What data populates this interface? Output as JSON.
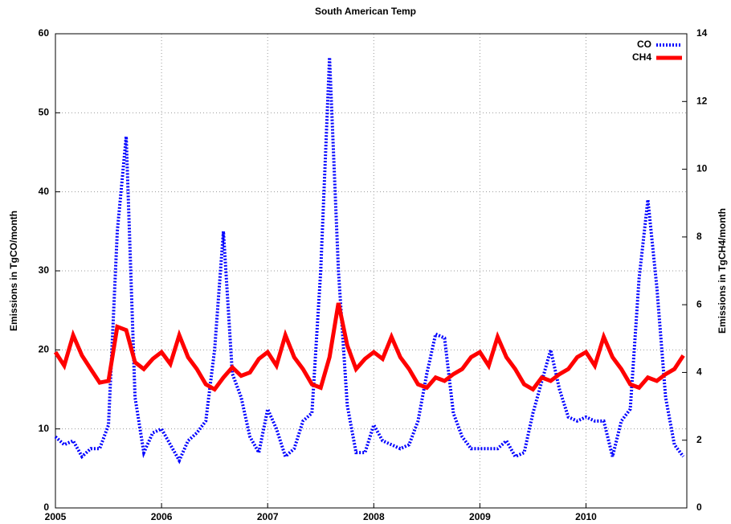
{
  "chart_data": {
    "type": "line",
    "title": "South American Temp",
    "ylabel": "Emissions in TgCO/month",
    "y2label": "Emissions in TgCH4/month",
    "x": [
      2005,
      2005.083,
      2005.167,
      2005.25,
      2005.333,
      2005.417,
      2005.5,
      2005.583,
      2005.667,
      2005.75,
      2005.833,
      2005.917,
      2006,
      2006.083,
      2006.167,
      2006.25,
      2006.333,
      2006.417,
      2006.5,
      2006.583,
      2006.667,
      2006.75,
      2006.833,
      2006.917,
      2007,
      2007.083,
      2007.167,
      2007.25,
      2007.333,
      2007.417,
      2007.5,
      2007.583,
      2007.667,
      2007.75,
      2007.833,
      2007.917,
      2008,
      2008.083,
      2008.167,
      2008.25,
      2008.333,
      2008.417,
      2008.5,
      2008.583,
      2008.667,
      2008.75,
      2008.833,
      2008.917,
      2009,
      2009.083,
      2009.167,
      2009.25,
      2009.333,
      2009.417,
      2009.5,
      2009.583,
      2009.667,
      2009.75,
      2009.833,
      2009.917,
      2010,
      2010.083,
      2010.167,
      2010.25,
      2010.333,
      2010.417,
      2010.5,
      2010.583,
      2010.667,
      2010.75,
      2010.833,
      2010.917
    ],
    "series": [
      {
        "name": "CO",
        "color": "#0000ff",
        "style": "dotted",
        "values": [
          9,
          8,
          8.5,
          6.5,
          7.5,
          7.5,
          10.5,
          35,
          47,
          14,
          7,
          9.5,
          10,
          8,
          6,
          8.5,
          9.5,
          11,
          20,
          35,
          17,
          14,
          9,
          7,
          12.5,
          10,
          6.5,
          7.5,
          11,
          12,
          30,
          57,
          30,
          13,
          7,
          7,
          10.5,
          8.5,
          8,
          7.5,
          8,
          11,
          17,
          22,
          21.5,
          12,
          9,
          7.5,
          7.5,
          7.5,
          7.5,
          8.5,
          6.5,
          7,
          12,
          16,
          20,
          15,
          11.5,
          11,
          11.5,
          11,
          11,
          6.5,
          11,
          12.5,
          29,
          39,
          28,
          14,
          8,
          6.5
        ]
      },
      {
        "name": "CH4",
        "color": "#ff0000",
        "style": "solid",
        "axis": "y2",
        "values": [
          4.6,
          4.2,
          5.1,
          4.5,
          4.1,
          3.7,
          3.75,
          5.35,
          5.25,
          4.3,
          4.1,
          4.4,
          4.6,
          4.25,
          5.1,
          4.45,
          4.1,
          3.65,
          3.5,
          3.85,
          4.15,
          3.9,
          4.0,
          4.4,
          4.6,
          4.2,
          5.1,
          4.45,
          4.1,
          3.65,
          3.55,
          4.45,
          6.05,
          4.8,
          4.1,
          4.4,
          4.6,
          4.4,
          5.05,
          4.45,
          4.1,
          3.65,
          3.55,
          3.85,
          3.75,
          3.95,
          4.1,
          4.45,
          4.6,
          4.2,
          5.05,
          4.45,
          4.1,
          3.65,
          3.5,
          3.85,
          3.75,
          3.95,
          4.1,
          4.45,
          4.6,
          4.2,
          5.05,
          4.45,
          4.1,
          3.65,
          3.55,
          3.85,
          3.75,
          3.95,
          4.1,
          4.5
        ]
      }
    ],
    "xlim": [
      2005,
      2010.95
    ],
    "xticks": [
      2005,
      2006,
      2007,
      2008,
      2009,
      2010
    ],
    "ylim": [
      0,
      60
    ],
    "yticks": [
      0,
      10,
      20,
      30,
      40,
      50,
      60
    ],
    "y2lim": [
      0,
      14
    ],
    "y2ticks": [
      0,
      2,
      4,
      6,
      8,
      10,
      12,
      14
    ],
    "grid": true,
    "legend": "upper right"
  }
}
